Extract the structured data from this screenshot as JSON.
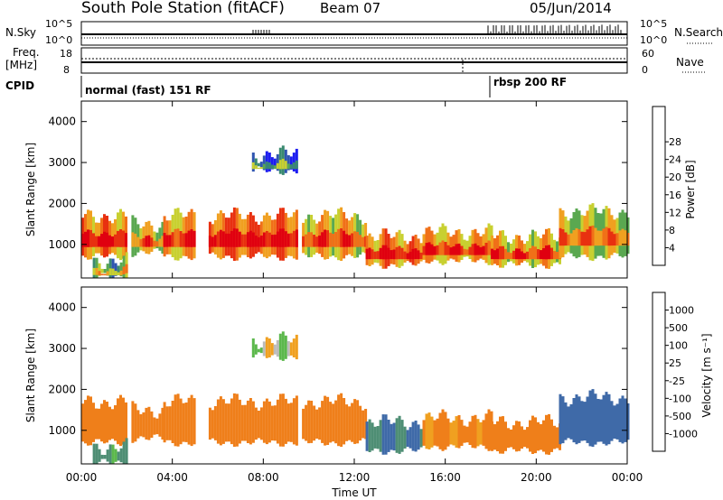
{
  "header": {
    "title": "South Pole Station (fitACF)",
    "beam": "Beam 07",
    "date": "05/Jun/2014"
  },
  "noise_panel": {
    "left_label": "N.Sky",
    "right_label": "N.Search",
    "left_ticks": [
      "10^5",
      "10^0"
    ],
    "right_ticks": [
      "10^5",
      "10^0"
    ]
  },
  "freq_panel": {
    "left_label_line1": "Freq.",
    "left_label_line2": "[MHz]",
    "left_ticks": [
      "18",
      "8"
    ],
    "right_label": "Nave",
    "right_ticks": [
      "60",
      "0"
    ]
  },
  "cpid": {
    "label": "CPID",
    "segments": [
      {
        "name": "normal (fast) 151 RF",
        "start_h": 0,
        "end_h": 17.9
      },
      {
        "name": "rbsp 200 RF",
        "start_h": 17.9,
        "end_h": 24
      }
    ]
  },
  "colors": {
    "power_scale": [
      "#1c1cf0",
      "#2f55b0",
      "#3a8a70",
      "#5aa850",
      "#c8d030",
      "#f0a020",
      "#f07018",
      "#e83010",
      "#e00010"
    ],
    "velocity_scale": [
      "#1d3fb0",
      "#3f6aa8",
      "#4e8e74",
      "#5cb84c",
      "#bbbbbb",
      "#f0a020",
      "#ef7f1a",
      "#e84a14",
      "#e00010"
    ]
  },
  "chart_data": [
    {
      "type": "heatmap",
      "title": "Power",
      "ylabel": "Slant Range [km]",
      "xlabel": "Time UT",
      "ylim": [
        180,
        4500
      ],
      "xlim": [
        0,
        24
      ],
      "yticks": [
        "1000",
        "2000",
        "3000",
        "4000"
      ],
      "xticks": [
        "00:00",
        "04:00",
        "08:00",
        "12:00",
        "16:00",
        "20:00",
        "00:00"
      ],
      "colorbar_label": "Power [dB]",
      "colorbar_ticks": [
        "4",
        "8",
        "12",
        "16",
        "20",
        "24",
        "28"
      ],
      "colorbar_range": [
        0,
        30
      ],
      "bands": [
        {
          "x": [
            0,
            2
          ],
          "y": [
            700,
            1700
          ],
          "level": 20
        },
        {
          "x": [
            2.2,
            3.6
          ],
          "y": [
            800,
            1500
          ],
          "level": 15
        },
        {
          "x": [
            3.6,
            5
          ],
          "y": [
            700,
            1700
          ],
          "level": 18
        },
        {
          "x": [
            5.6,
            9.5
          ],
          "y": [
            700,
            1700
          ],
          "level": 22
        },
        {
          "x": [
            9.7,
            12.5
          ],
          "y": [
            700,
            1700
          ],
          "level": 17
        },
        {
          "x": [
            12.5,
            15
          ],
          "y": [
            500,
            1200
          ],
          "level": 20
        },
        {
          "x": [
            15,
            18
          ],
          "y": [
            600,
            1300
          ],
          "level": 18
        },
        {
          "x": [
            18,
            21
          ],
          "y": [
            500,
            1200
          ],
          "level": 17
        },
        {
          "x": [
            21,
            24
          ],
          "y": [
            700,
            1800
          ],
          "level": 14
        },
        {
          "x": [
            7.5,
            9.5
          ],
          "y": [
            2800,
            3200
          ],
          "level": 4
        },
        {
          "x": [
            0.5,
            2
          ],
          "y": [
            200,
            600
          ],
          "level": 10
        }
      ]
    },
    {
      "type": "heatmap",
      "title": "Velocity",
      "ylabel": "Slant Range [km]",
      "xlabel": "Time UT",
      "ylim": [
        180,
        4500
      ],
      "xlim": [
        0,
        24
      ],
      "yticks": [
        "1000",
        "2000",
        "3000",
        "4000"
      ],
      "xticks": [
        "00:00",
        "04:00",
        "08:00",
        "12:00",
        "16:00",
        "20:00",
        "00:00"
      ],
      "colorbar_label": "Velocity [m s⁻¹]",
      "colorbar_ticks": [
        "1000",
        "500",
        "100",
        "25",
        "-25",
        "-100",
        "-500",
        "-1000"
      ],
      "bands": [
        {
          "x": [
            0,
            2
          ],
          "y": [
            700,
            1700
          ],
          "level": -200
        },
        {
          "x": [
            2.2,
            3.6
          ],
          "y": [
            800,
            1500
          ],
          "level": -150
        },
        {
          "x": [
            3.6,
            5
          ],
          "y": [
            700,
            1700
          ],
          "level": -200
        },
        {
          "x": [
            5.6,
            9.5
          ],
          "y": [
            700,
            1700
          ],
          "level": -200
        },
        {
          "x": [
            9.7,
            12.5
          ],
          "y": [
            700,
            1700
          ],
          "level": -150
        },
        {
          "x": [
            12.5,
            15
          ],
          "y": [
            500,
            1200
          ],
          "level": 300
        },
        {
          "x": [
            15,
            18
          ],
          "y": [
            600,
            1300
          ],
          "level": -100
        },
        {
          "x": [
            18,
            21
          ],
          "y": [
            500,
            1200
          ],
          "level": -200
        },
        {
          "x": [
            21,
            24
          ],
          "y": [
            700,
            1800
          ],
          "level": 400
        },
        {
          "x": [
            7.5,
            9.5
          ],
          "y": [
            2800,
            3200
          ],
          "level": 0
        },
        {
          "x": [
            0.5,
            2
          ],
          "y": [
            200,
            600
          ],
          "level": 100
        }
      ]
    }
  ],
  "axis_label": "Time UT"
}
